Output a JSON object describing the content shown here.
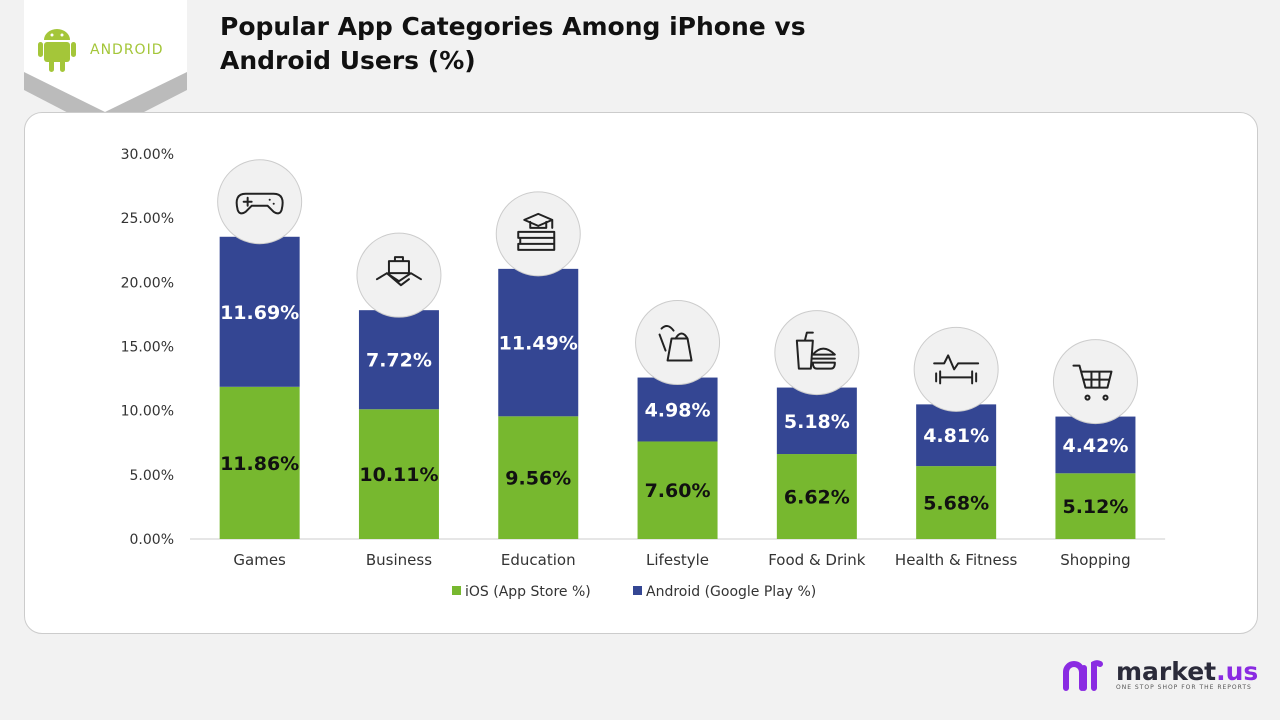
{
  "title": "Popular App Categories Among iPhone vs Android Users (%)",
  "logo": {
    "text": "ANDROID",
    "color": "#a4c639"
  },
  "brand": {
    "name": "market",
    "suffix": ".us",
    "tagline": "ONE STOP SHOP FOR THE REPORTS"
  },
  "chart_data": {
    "type": "bar",
    "stacked": true,
    "title": "Popular App Categories Among iPhone vs Android Users (%)",
    "categories": [
      "Games",
      "Business",
      "Education",
      "Lifestyle",
      "Food & Drink",
      "Health & Fitness",
      "Shopping"
    ],
    "icons": [
      "gamepad-icon",
      "handshake-briefcase-icon",
      "books-graduation-cap-icon",
      "shopping-bags-icon",
      "drink-burger-icon",
      "heartbeat-dumbbell-icon",
      "shopping-cart-icon"
    ],
    "series": [
      {
        "name": "iOS (App Store %)",
        "color": "#77b82f",
        "values": [
          11.86,
          10.11,
          9.56,
          7.6,
          6.62,
          5.68,
          5.12
        ],
        "labels": [
          "11.86%",
          "10.11%",
          "9.56%",
          "7.60%",
          "6.62%",
          "5.68%",
          "5.12%"
        ]
      },
      {
        "name": "Android (Google Play %)",
        "color": "#344693",
        "values": [
          11.69,
          7.72,
          11.49,
          4.98,
          5.18,
          4.81,
          4.42
        ],
        "labels": [
          "11.69%",
          "7.72%",
          "11.49%",
          "4.98%",
          "5.18%",
          "4.81%",
          "4.42%"
        ]
      }
    ],
    "ylim": [
      0,
      30
    ],
    "yticks": [
      "0.00%",
      "5.00%",
      "10.00%",
      "15.00%",
      "20.00%",
      "25.00%",
      "30.00%"
    ],
    "grid": false,
    "legend": "bottom"
  }
}
